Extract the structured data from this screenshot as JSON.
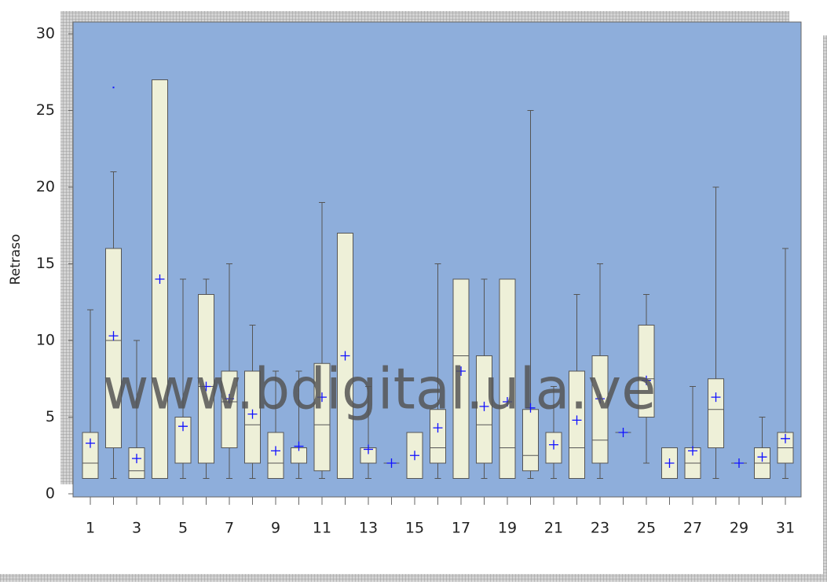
{
  "chart_data": {
    "type": "box",
    "y_label": "Retraso",
    "watermark": "www.bdigital.ula.ve",
    "categories": [
      1,
      null,
      3,
      null,
      5,
      null,
      7,
      null,
      9,
      null,
      11,
      null,
      13,
      null,
      15,
      null,
      17,
      null,
      19,
      null,
      21,
      null,
      23,
      null,
      25,
      null,
      27,
      null,
      29,
      null,
      31
    ],
    "boxes": [
      {
        "min": 1,
        "q1": 1,
        "median": 2,
        "q3": 4,
        "max": 12,
        "mean": 3.3
      },
      {
        "min": 1,
        "q1": 3,
        "median": 10,
        "q3": 16,
        "max": 21,
        "mean": 10.3,
        "outliers": [
          26.5
        ]
      },
      {
        "min": 1,
        "q1": 1,
        "median": 1.5,
        "q3": 3,
        "max": 10,
        "mean": 2.3
      },
      {
        "min": 1,
        "q1": 1,
        "median": 1,
        "q3": 27,
        "max": 27,
        "mean": 14
      },
      {
        "min": 1,
        "q1": 2,
        "median": 2,
        "q3": 5,
        "max": 14,
        "mean": 4.4
      },
      {
        "min": 1,
        "q1": 2,
        "median": 7,
        "q3": 13,
        "max": 14,
        "mean": 7
      },
      {
        "min": 1,
        "q1": 3,
        "median": 6,
        "q3": 8,
        "max": 15,
        "mean": 6.2
      },
      {
        "min": 1,
        "q1": 2,
        "median": 4.5,
        "q3": 8,
        "max": 11,
        "mean": 5.2
      },
      {
        "min": 1,
        "q1": 1,
        "median": 2,
        "q3": 4,
        "max": 8,
        "mean": 2.8
      },
      {
        "min": 1,
        "q1": 2,
        "median": 3,
        "q3": 3,
        "max": 8,
        "mean": 3.1
      },
      {
        "min": 1,
        "q1": 1.5,
        "median": 4.5,
        "q3": 8.5,
        "max": 19,
        "mean": 6.3
      },
      {
        "min": 1,
        "q1": 1,
        "median": 1,
        "q3": 17,
        "max": 17,
        "mean": 9
      },
      {
        "min": 1,
        "q1": 2,
        "median": 3,
        "q3": 3,
        "max": 7,
        "mean": 2.9
      },
      {
        "min": 2,
        "q1": 2,
        "median": 2,
        "q3": 2,
        "max": 2,
        "mean": 2
      },
      {
        "min": 1,
        "q1": 1,
        "median": 1,
        "q3": 4,
        "max": 4,
        "mean": 2.5
      },
      {
        "min": 1,
        "q1": 2,
        "median": 3,
        "q3": 5.5,
        "max": 15,
        "mean": 4.3
      },
      {
        "min": 1,
        "q1": 1,
        "median": 9,
        "q3": 14,
        "max": 14,
        "mean": 8
      },
      {
        "min": 1,
        "q1": 2,
        "median": 4.5,
        "q3": 9,
        "max": 14,
        "mean": 5.7
      },
      {
        "min": 1,
        "q1": 1,
        "median": 3,
        "q3": 14,
        "max": 14,
        "mean": 6
      },
      {
        "min": 1,
        "q1": 1.5,
        "median": 2.5,
        "q3": 5.5,
        "max": 25,
        "mean": 5.6
      },
      {
        "min": 1,
        "q1": 2,
        "median": 2,
        "q3": 4,
        "max": 7,
        "mean": 3.2
      },
      {
        "min": 1,
        "q1": 1,
        "median": 3,
        "q3": 8,
        "max": 13,
        "mean": 4.8
      },
      {
        "min": 1,
        "q1": 2,
        "median": 3.5,
        "q3": 9,
        "max": 15,
        "mean": 6.2
      },
      {
        "min": 4,
        "q1": 4,
        "median": 4,
        "q3": 4,
        "max": 4,
        "mean": 4
      },
      {
        "min": 2,
        "q1": 5,
        "median": 7.5,
        "q3": 11,
        "max": 13,
        "mean": 7.4
      },
      {
        "min": 1,
        "q1": 1,
        "median": 1,
        "q3": 3,
        "max": 3,
        "mean": 2
      },
      {
        "min": 1,
        "q1": 1,
        "median": 2,
        "q3": 3,
        "max": 7,
        "mean": 2.8
      },
      {
        "min": 1,
        "q1": 3,
        "median": 5.5,
        "q3": 7.5,
        "max": 20,
        "mean": 6.3
      },
      {
        "min": 2,
        "q1": 2,
        "median": 2,
        "q3": 2,
        "max": 2,
        "mean": 2
      },
      {
        "min": 1,
        "q1": 1,
        "median": 2,
        "q3": 3,
        "max": 5,
        "mean": 2.4
      },
      {
        "min": 1,
        "q1": 2,
        "median": 3,
        "q3": 4,
        "max": 16,
        "mean": 3.6
      }
    ],
    "ylim": [
      0,
      30
    ],
    "yticks": [
      0,
      5,
      10,
      15,
      20,
      25,
      30
    ],
    "plot_color": "#8eaedb",
    "box_color": "#eef0d8",
    "mean_color": "#1010ff",
    "line_color": "#555555"
  }
}
